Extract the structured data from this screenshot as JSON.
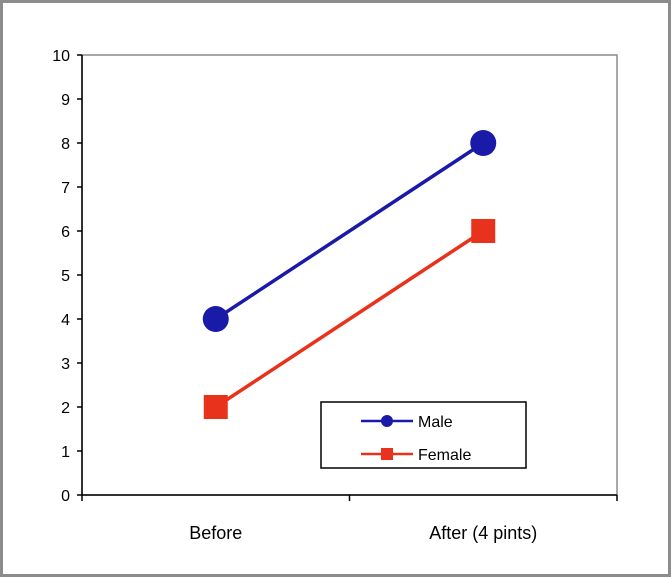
{
  "chart_data": {
    "type": "line",
    "categories": [
      "Before",
      "After (4 pints)"
    ],
    "ylim": [
      0,
      10
    ],
    "yticks": [
      "0",
      "1",
      "2",
      "3",
      "4",
      "5",
      "6",
      "7",
      "8",
      "9",
      "10"
    ],
    "grid": false,
    "legend_position": "bottom-right",
    "series": [
      {
        "name": "Male",
        "values": [
          4,
          8
        ],
        "color": "#1a1aa8",
        "marker": "circle"
      },
      {
        "name": "Female",
        "values": [
          2,
          6
        ],
        "color": "#e8321c",
        "marker": "square"
      }
    ]
  }
}
